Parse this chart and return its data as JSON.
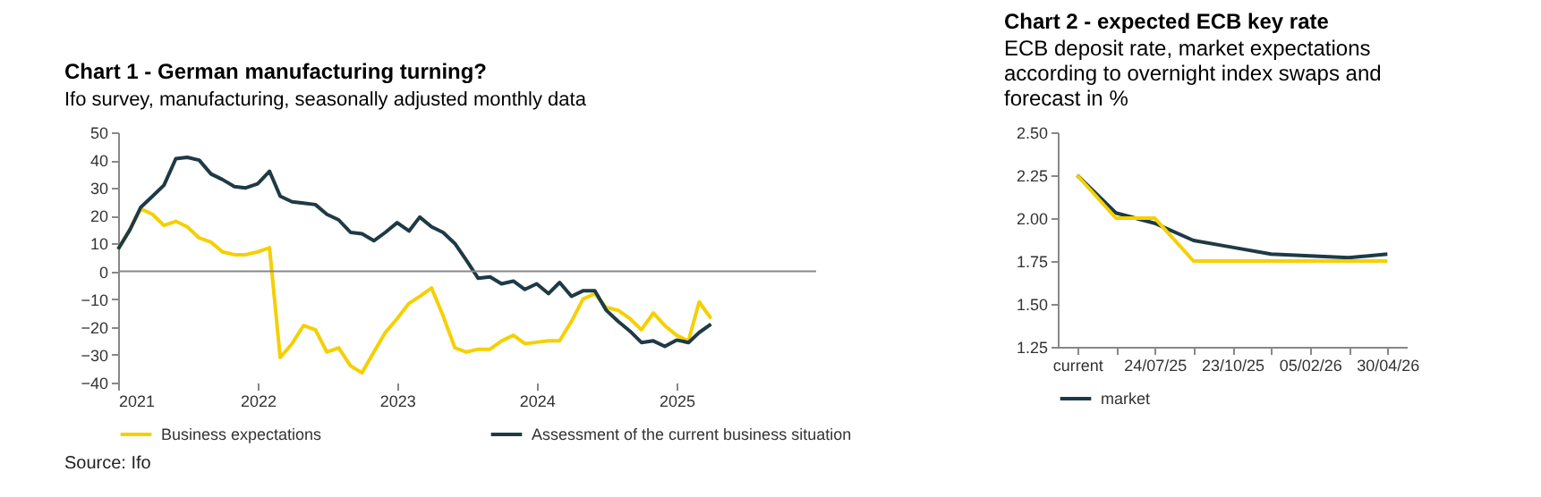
{
  "chart_data": [
    {
      "type": "line",
      "title": "Chart 1 - German manufacturing turning?",
      "subtitle": "Ifo survey, manufacturing, seasonally adjusted monthly data",
      "x": [
        "2021-01",
        "2021-02",
        "2021-03",
        "2021-04",
        "2021-05",
        "2021-06",
        "2021-07",
        "2021-08",
        "2021-09",
        "2021-10",
        "2021-11",
        "2021-12",
        "2022-01",
        "2022-02",
        "2022-03",
        "2022-04",
        "2022-05",
        "2022-06",
        "2022-07",
        "2022-08",
        "2022-09",
        "2022-10",
        "2022-11",
        "2022-12",
        "2023-01",
        "2023-02",
        "2023-03",
        "2023-04",
        "2023-05",
        "2023-06",
        "2023-07",
        "2023-08",
        "2023-09",
        "2023-10",
        "2023-11",
        "2023-12",
        "2024-01",
        "2024-02",
        "2024-03",
        "2024-04",
        "2024-05",
        "2024-06",
        "2024-07",
        "2024-08",
        "2024-09",
        "2024-10",
        "2024-11",
        "2024-12",
        "2025-01",
        "2025-02",
        "2025-03",
        "2025-04"
      ],
      "series": [
        {
          "name": "Business expectations",
          "color": "#f5d000",
          "values": [
            8,
            15,
            22.5,
            20.5,
            16.5,
            18,
            16,
            12,
            10.5,
            7,
            6,
            6,
            7,
            8.5,
            -31,
            -26,
            -19.5,
            -21,
            -29,
            -27.5,
            -34,
            -36.5,
            -29,
            -22,
            -17,
            -11.5,
            -9,
            -6,
            -16,
            -27.5,
            -29,
            -28,
            -28,
            -25,
            -23,
            -26,
            -25.5,
            -25,
            -25,
            -18,
            -10,
            -8,
            -13,
            -14,
            -17,
            -21,
            -15,
            -19.5,
            -23,
            -25,
            -11,
            -17
          ]
        },
        {
          "name": "Assessment of the current business situation",
          "color": "#1e3a46",
          "values": [
            8,
            15,
            23,
            27,
            31,
            40.5,
            41,
            40,
            35,
            33,
            30.5,
            30,
            31.5,
            36,
            27,
            25,
            24.5,
            24,
            20.5,
            18.5,
            14,
            13.5,
            11,
            14,
            17.5,
            14.5,
            19.5,
            16,
            14,
            10,
            4,
            -2.5,
            -2,
            -4.5,
            -3.5,
            -6.5,
            -4.5,
            -8,
            -4,
            -9,
            -7,
            -7,
            -14,
            -18,
            -21.5,
            -25.6,
            -25,
            -27,
            -24.7,
            -25.6,
            -22,
            -19
          ]
        }
      ],
      "xlim": [
        "2021-01",
        "2026-01"
      ],
      "xticks": [
        "2021",
        "2022",
        "2023",
        "2024",
        "2025"
      ],
      "ylim": [
        -40,
        50
      ],
      "yticks": [
        -40,
        -30,
        -20,
        -10,
        0,
        10,
        20,
        30,
        40,
        50
      ],
      "ref_lines": [
        {
          "axis": "y",
          "value": 0
        }
      ],
      "legend": "bottom",
      "grid": false,
      "annotations": [
        "Source: Ifo"
      ]
    },
    {
      "type": "line",
      "title": "Chart 2 - expected ECB key rate",
      "subtitle": "ECB deposit rate, market expectations according to overnight index swaps and forecast in %",
      "categories": [
        "current",
        null,
        "24/07/25",
        null,
        "23/10/25",
        null,
        "05/02/26",
        null,
        "30/04/26"
      ],
      "series": [
        {
          "name": "market",
          "color": "#1e3a46",
          "values": [
            2.25,
            2.03,
            1.97,
            1.87,
            1.83,
            1.79,
            1.78,
            1.77,
            1.79
          ]
        },
        {
          "color": "#f5d000",
          "values": [
            2.25,
            2.0,
            2.0,
            1.75,
            1.75,
            1.75,
            1.75,
            1.75,
            1.75
          ]
        }
      ],
      "ylim": [
        1.25,
        2.5
      ],
      "yticks": [
        {
          "value": 1.25,
          "label": "1.25"
        },
        {
          "value": 1.5,
          "label": "1.50"
        },
        {
          "value": 1.75,
          "label": "1.75"
        },
        {
          "value": 2,
          "label": "2.00"
        },
        {
          "value": 2.25,
          "label": "2.25"
        },
        {
          "value": 2.5,
          "label": "2.50"
        }
      ],
      "legend": "bottom",
      "grid": false
    }
  ]
}
